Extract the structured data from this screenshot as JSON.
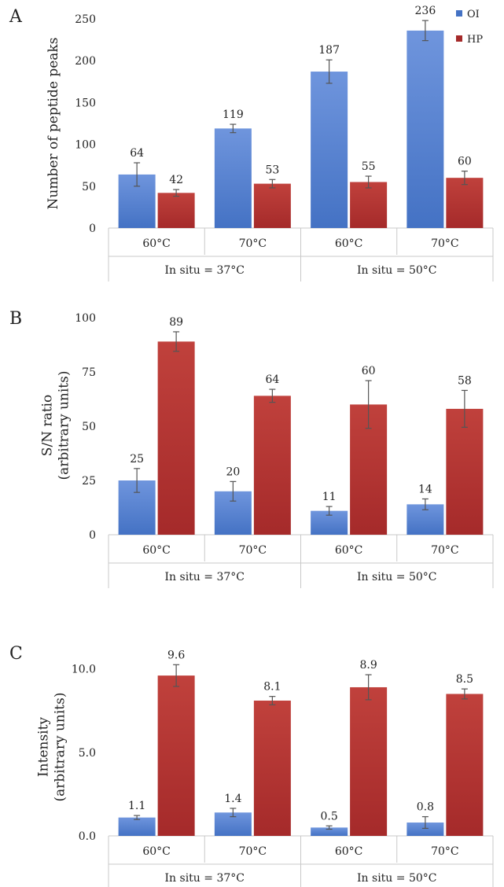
{
  "colors": {
    "OI": "#4472c4",
    "HP": "#a52a2a",
    "OI_light": "#6f95dd",
    "HP_light": "#c0413c"
  },
  "legend": [
    {
      "key": "OI",
      "label": "OI"
    },
    {
      "key": "HP",
      "label": "HP"
    }
  ],
  "chart_data": [
    {
      "panel": "A",
      "type": "bar",
      "ylabel": "Number of peptide peaks",
      "ylim": [
        0,
        250
      ],
      "yticks": [
        0,
        50,
        100,
        150,
        200,
        250
      ],
      "ytick_labels": [
        "0",
        "50",
        "100",
        "150",
        "200",
        "250"
      ],
      "categories": [
        "60°C",
        "70°C",
        "60°C",
        "70°C"
      ],
      "groups": [
        "In situ = 37°C",
        "In situ = 50°C"
      ],
      "series": [
        {
          "name": "OI",
          "values": [
            64,
            119,
            187,
            236
          ],
          "labels": [
            "64",
            "119",
            "187",
            "236"
          ],
          "errors": [
            14,
            5,
            14,
            12
          ]
        },
        {
          "name": "HP",
          "values": [
            42,
            53,
            55,
            60
          ],
          "labels": [
            "42",
            "53",
            "55",
            "60"
          ],
          "errors": [
            4,
            5,
            7,
            8
          ]
        }
      ],
      "legend": "top-right"
    },
    {
      "panel": "B",
      "type": "bar",
      "ylabel": "S/N ratio\n(arbitrary units)",
      "ylim": [
        0,
        100
      ],
      "yticks": [
        0,
        25,
        50,
        75,
        100
      ],
      "ytick_labels": [
        "0",
        "25",
        "50",
        "75",
        "100"
      ],
      "categories": [
        "60°C",
        "70°C",
        "60°C",
        "70°C"
      ],
      "groups": [
        "In situ = 37°C",
        "In situ = 50°C"
      ],
      "series": [
        {
          "name": "OI",
          "values": [
            25,
            20,
            11,
            14
          ],
          "labels": [
            "25",
            "20",
            "11",
            "14"
          ],
          "errors": [
            5.5,
            4.5,
            2,
            2.5
          ]
        },
        {
          "name": "HP",
          "values": [
            89,
            64,
            60,
            58
          ],
          "labels": [
            "89",
            "64",
            "60",
            "58"
          ],
          "errors": [
            4.5,
            3,
            11,
            8.5
          ]
        }
      ]
    },
    {
      "panel": "C",
      "type": "bar",
      "ylabel": "Intensity\n(arbitrary units)",
      "ylim": [
        0,
        10.5
      ],
      "yticks": [
        0,
        5,
        10
      ],
      "ytick_labels": [
        "0.0",
        "5.0",
        "10.0"
      ],
      "categories": [
        "60°C",
        "70°C",
        "60°C",
        "70°C"
      ],
      "groups": [
        "In situ = 37°C",
        "In situ = 50°C"
      ],
      "series": [
        {
          "name": "OI",
          "values": [
            1.1,
            1.4,
            0.5,
            0.8
          ],
          "labels": [
            "1.1",
            "1.4",
            "0.5",
            "0.8"
          ],
          "errors": [
            0.12,
            0.25,
            0.1,
            0.35
          ]
        },
        {
          "name": "HP",
          "values": [
            9.6,
            8.1,
            8.9,
            8.5
          ],
          "labels": [
            "9.6",
            "8.1",
            "8.9",
            "8.5"
          ],
          "errors": [
            0.65,
            0.25,
            0.75,
            0.3
          ]
        }
      ]
    }
  ]
}
